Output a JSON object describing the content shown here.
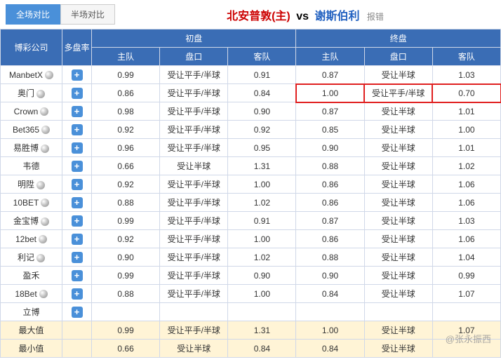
{
  "tabs": {
    "full": "全场对比",
    "half": "半场对比"
  },
  "title": {
    "home": "北安普敦(主)",
    "vs": "vs",
    "away": "谢斯伯利",
    "err": "报错"
  },
  "header": {
    "company": "博彩公司",
    "multi": "多盘率",
    "open": "初盘",
    "close": "终盘",
    "home": "主队",
    "handicap": "盘口",
    "away": "客队"
  },
  "rows": [
    {
      "c": "ManbetX",
      "b": true,
      "o": [
        "0.99",
        "受让平手/半球",
        "0.91"
      ],
      "f": [
        "0.87",
        "受让半球",
        "1.03"
      ]
    },
    {
      "c": "奥门",
      "b": true,
      "o": [
        "0.86",
        "受让平手/半球",
        "0.84"
      ],
      "f": [
        "1.00",
        "受让平手/半球",
        "0.70"
      ],
      "hl": true
    },
    {
      "c": "Crown",
      "b": true,
      "o": [
        "0.98",
        "受让平手/半球",
        "0.90"
      ],
      "f": [
        "0.87",
        "受让半球",
        "1.01"
      ]
    },
    {
      "c": "Bet365",
      "b": true,
      "o": [
        "0.92",
        "受让平手/半球",
        "0.92"
      ],
      "f": [
        "0.85",
        "受让半球",
        "1.00"
      ]
    },
    {
      "c": "易胜博",
      "b": true,
      "o": [
        "0.96",
        "受让平手/半球",
        "0.95"
      ],
      "f": [
        "0.90",
        "受让半球",
        "1.01"
      ]
    },
    {
      "c": "韦德",
      "b": false,
      "o": [
        "0.66",
        "受让半球",
        "1.31"
      ],
      "f": [
        "0.88",
        "受让半球",
        "1.02"
      ]
    },
    {
      "c": "明陞",
      "b": true,
      "o": [
        "0.92",
        "受让平手/半球",
        "1.00"
      ],
      "f": [
        "0.86",
        "受让半球",
        "1.06"
      ]
    },
    {
      "c": "10BET",
      "b": true,
      "o": [
        "0.88",
        "受让平手/半球",
        "1.02"
      ],
      "f": [
        "0.86",
        "受让半球",
        "1.06"
      ]
    },
    {
      "c": "金宝博",
      "b": true,
      "o": [
        "0.99",
        "受让平手/半球",
        "0.91"
      ],
      "f": [
        "0.87",
        "受让半球",
        "1.03"
      ]
    },
    {
      "c": "12bet",
      "b": true,
      "o": [
        "0.92",
        "受让平手/半球",
        "1.00"
      ],
      "f": [
        "0.86",
        "受让半球",
        "1.06"
      ]
    },
    {
      "c": "利记",
      "b": true,
      "o": [
        "0.90",
        "受让平手/半球",
        "1.02"
      ],
      "f": [
        "0.88",
        "受让半球",
        "1.04"
      ]
    },
    {
      "c": "盈禾",
      "b": false,
      "o": [
        "0.99",
        "受让平手/半球",
        "0.90"
      ],
      "f": [
        "0.90",
        "受让半球",
        "0.99"
      ]
    },
    {
      "c": "18Bet",
      "b": true,
      "o": [
        "0.88",
        "受让平手/半球",
        "1.00"
      ],
      "f": [
        "0.84",
        "受让半球",
        "1.07"
      ]
    },
    {
      "c": "立博",
      "b": false,
      "o": [
        "",
        "",
        ""
      ],
      "f": [
        "",
        "",
        ""
      ]
    }
  ],
  "summary": [
    {
      "c": "最大值",
      "o": [
        "0.99",
        "受让平手/半球",
        "1.31"
      ],
      "f": [
        "1.00",
        "受让半球",
        "1.07"
      ]
    },
    {
      "c": "最小值",
      "o": [
        "0.66",
        "受让半球",
        "0.84"
      ],
      "f": [
        "0.84",
        "受让半球",
        ""
      ]
    }
  ],
  "watermark": "@张永振西"
}
